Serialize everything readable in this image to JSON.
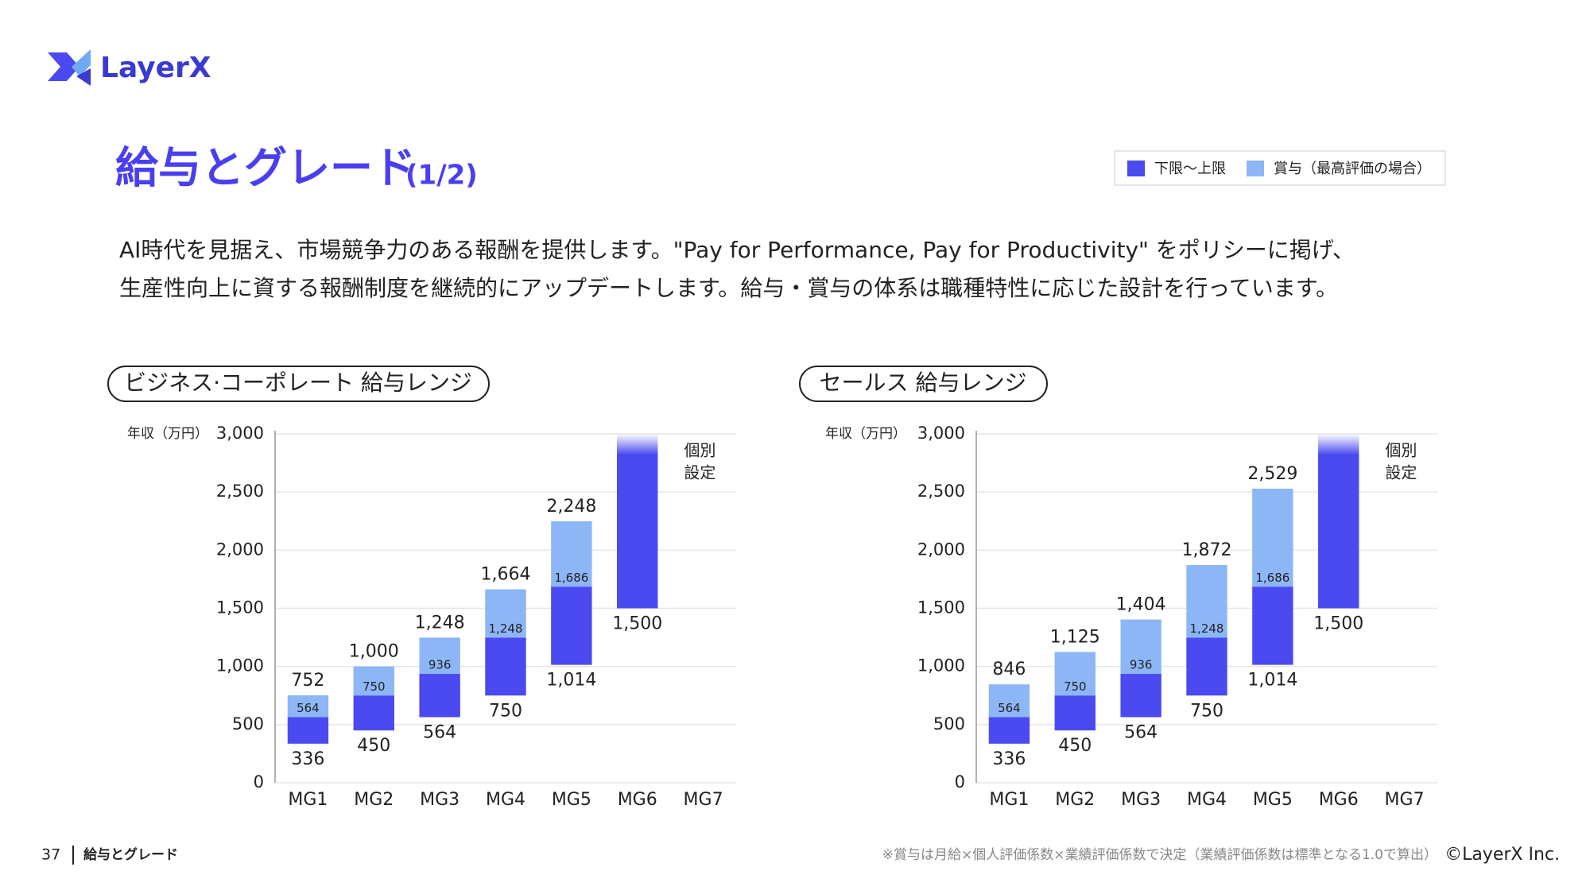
{
  "logo": "LayerX",
  "title": "給与とグレード",
  "title_page": "(1/2)",
  "body": [
    "AI時代を見据え、市場競争力のある報酬を提供します。\"Pay for Performance, Pay for Productivity\" をポリシーに掲げ、",
    "生産性向上に資する報酬制度を継続的にアップデートします。給与・賞与の体系は職種特性に応じた設計を行っています。"
  ],
  "footer": {
    "page": "37",
    "section": "給与とグレード",
    "note": "※賞与は月給×個人評価係数×業績評価係数で決定（業績評価係数は標準となる1.0で算出）",
    "copyright": "©LayerX Inc."
  },
  "chart_data": [
    {
      "type": "floating_bar",
      "title": "ビジネス·コーポレート 給与レンジ",
      "y_label": "年収（万円）",
      "categories": [
        "MG1",
        "MG2",
        "MG3",
        "MG4",
        "MG5",
        "MG6",
        "MG7"
      ],
      "series": [
        {
          "name": "下限～上限",
          "color": "#4a4af0",
          "low": [
            336,
            450,
            564,
            750,
            1014,
            1500,
            null
          ],
          "low_labels": [
            "336",
            "450",
            "564",
            "750",
            "1,014",
            "1,500",
            null
          ],
          "high": [
            564,
            750,
            936,
            1248,
            1686,
            null,
            null
          ],
          "high_labels": [
            "564",
            "750",
            "936",
            "1,248",
            "1,686",
            null,
            null
          ]
        },
        {
          "name": "賞与（最高評価の場合）",
          "color": "#8db6f7",
          "high": [
            752,
            1000,
            1248,
            1664,
            2248,
            null,
            null
          ],
          "high_labels": [
            "752",
            "1,000",
            "1,248",
            "1,664",
            "2,248",
            null,
            null
          ]
        }
      ],
      "annotation_lines": [
        "個別",
        "設定"
      ],
      "ylim": [
        0,
        3000
      ],
      "yticks": [
        0,
        500,
        {
          "value": 1000,
          "label": "1,000"
        },
        {
          "value": 1500,
          "label": "1,500"
        },
        {
          "value": 2000,
          "label": "2,000"
        },
        {
          "value": 2500,
          "label": "2,500"
        },
        {
          "value": 3000,
          "label": "3,000"
        }
      ],
      "grid": true
    },
    {
      "type": "floating_bar",
      "title": "セールス 給与レンジ",
      "y_label": "年収（万円）",
      "categories": [
        "MG1",
        "MG2",
        "MG3",
        "MG4",
        "MG5",
        "MG6",
        "MG7"
      ],
      "series": [
        {
          "name": "下限～上限",
          "color": "#4a4af0",
          "low": [
            336,
            450,
            564,
            750,
            1014,
            1500,
            null
          ],
          "low_labels": [
            "336",
            "450",
            "564",
            "750",
            "1,014",
            "1,500",
            null
          ],
          "high": [
            564,
            750,
            936,
            1248,
            1686,
            null,
            null
          ],
          "high_labels": [
            "564",
            "750",
            "936",
            "1,248",
            "1,686",
            null,
            null
          ]
        },
        {
          "name": "賞与（最高評価の場合）",
          "color": "#8db6f7",
          "high": [
            846,
            1125,
            1404,
            1872,
            2529,
            null,
            null
          ],
          "high_labels": [
            "846",
            "1,125",
            "1,404",
            "1,872",
            "2,529",
            null,
            null
          ]
        }
      ],
      "annotation_lines": [
        "個別",
        "設定"
      ],
      "ylim": [
        0,
        3000
      ],
      "yticks": [
        0,
        500,
        {
          "value": 1000,
          "label": "1,000"
        },
        {
          "value": 1500,
          "label": "1,500"
        },
        {
          "value": 2000,
          "label": "2,000"
        },
        {
          "value": 2500,
          "label": "2,500"
        },
        {
          "value": 3000,
          "label": "3,000"
        }
      ],
      "grid": true
    }
  ]
}
